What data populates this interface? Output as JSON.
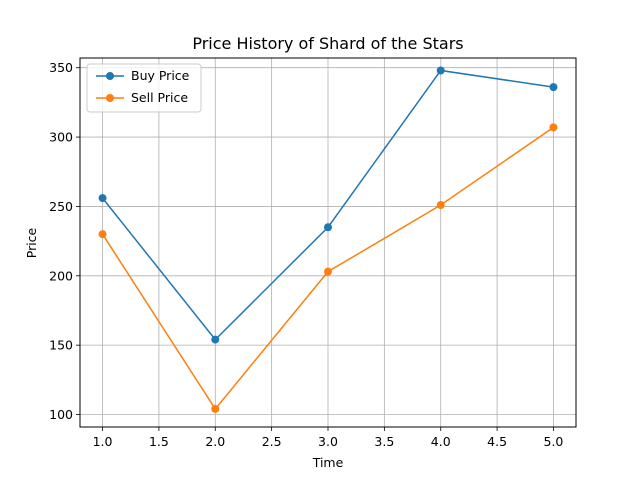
{
  "chart_data": {
    "type": "line",
    "title": "Price History of Shard of the Stars",
    "xlabel": "Time",
    "ylabel": "Price",
    "x": [
      1.0,
      2.0,
      3.0,
      4.0,
      5.0
    ],
    "xlim": [
      0.8,
      5.2
    ],
    "ylim": [
      91,
      357
    ],
    "xticks": [
      "1.0",
      "1.5",
      "2.0",
      "2.5",
      "3.0",
      "3.5",
      "4.0",
      "4.5",
      "5.0"
    ],
    "yticks": [
      "100",
      "150",
      "200",
      "250",
      "300",
      "350"
    ],
    "grid": true,
    "legend_position": "top-left",
    "series": [
      {
        "name": "Buy Price",
        "color": "#1f77b4",
        "marker": "circle",
        "values": [
          256,
          154,
          235,
          348,
          336
        ]
      },
      {
        "name": "Sell Price",
        "color": "#ff7f0e",
        "marker": "circle",
        "values": [
          230,
          104,
          203,
          251,
          307
        ]
      }
    ]
  }
}
